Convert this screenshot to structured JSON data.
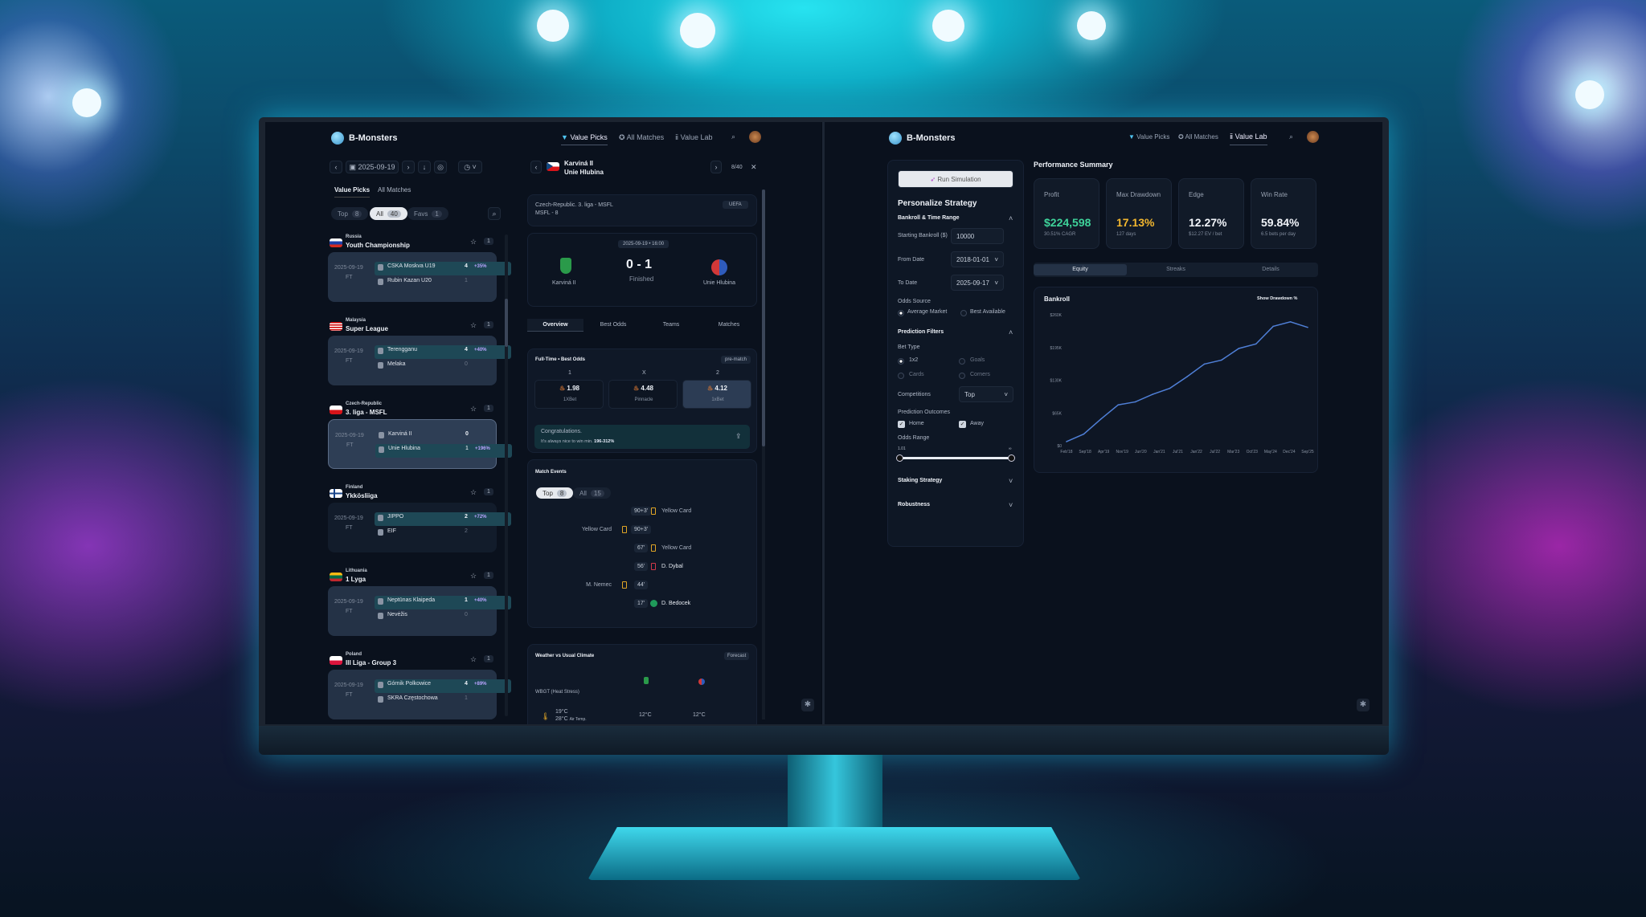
{
  "left_app": {
    "brand": "B-Monsters",
    "nav": [
      {
        "label": "Value Picks",
        "icon": "diamond-icon",
        "active": true
      },
      {
        "label": "All Matches",
        "icon": "soccer-ball-icon"
      },
      {
        "label": "Value Lab",
        "icon": "chart-icon"
      }
    ],
    "date": "2025-09-19",
    "tabs": [
      "Value Picks",
      "All Matches"
    ],
    "filters": [
      {
        "label": "Top",
        "count": "8"
      },
      {
        "label": "All",
        "count": "40",
        "active": true
      },
      {
        "label": "Favs",
        "count": "1"
      }
    ],
    "leagues": [
      {
        "country": "Russia",
        "name": "Youth Championship",
        "count": "1",
        "flag": "russia",
        "date": "2025-09-19",
        "status": "FT",
        "home": "CSKA Moskva U19",
        "home_score": "4",
        "edge": "+35%",
        "away": "Rubin Kazan U20",
        "away_score": "1"
      },
      {
        "country": "Malaysia",
        "name": "Super League",
        "count": "1",
        "flag": "malaysia",
        "date": "2025-09-19",
        "status": "FT",
        "home": "Terengganu",
        "home_score": "4",
        "edge": "+40%",
        "away": "Melaka",
        "away_score": "0"
      },
      {
        "country": "Czech-Republic",
        "name": "3. liga - MSFL",
        "count": "1",
        "flag": "czech",
        "date": "2025-09-19",
        "status": "FT",
        "home": "Karviná II",
        "home_score": "0",
        "away": "Unie Hlubina",
        "away_score": "1",
        "edge": "+196%",
        "selected": true
      },
      {
        "country": "Finland",
        "name": "Ykkösliiga",
        "count": "1",
        "flag": "finland",
        "date": "2025-09-19",
        "status": "FT",
        "home": "JIPPO",
        "home_score": "2",
        "edge": "+72%",
        "away": "EIF",
        "away_score": "2"
      },
      {
        "country": "Lithuania",
        "name": "1 Lyga",
        "count": "1",
        "flag": "lithuania",
        "date": "2025-09-19",
        "status": "FT",
        "home": "Neptūnas Klaipeda",
        "home_score": "1",
        "edge": "+40%",
        "away": "Nevėžis",
        "away_score": "0"
      },
      {
        "country": "Poland",
        "name": "III Liga - Group 3",
        "count": "1",
        "flag": "poland",
        "date": "2025-09-19",
        "status": "FT",
        "home": "Górnik Polkowice",
        "home_score": "4",
        "edge": "+89%",
        "away": "SKRA Częstochowa",
        "away_score": "1"
      }
    ],
    "detail": {
      "home": "Karviná II",
      "away": "Unie Hlubina",
      "pager": "8/40",
      "competition": "Czech-Republic. 3. liga - MSFL",
      "round": "MSFL - 8",
      "badge": "UEFA",
      "kickoff": "2025-09-19 • 16:00",
      "score_home": "0",
      "score_sep": "-",
      "score_away": "1",
      "status": "Finished",
      "tabs": [
        "Overview",
        "Best Odds",
        "Teams",
        "Matches"
      ],
      "odds": {
        "title": "Full-Time • Best Odds",
        "tag": "pre-match",
        "cols": [
          {
            "label": "1",
            "odd": "1.98",
            "book": "1XBet"
          },
          {
            "label": "X",
            "odd": "4.48",
            "book": "Pinnacle"
          },
          {
            "label": "2",
            "odd": "4.12",
            "book": "1xBet",
            "best": true
          }
        ]
      },
      "congrats_title": "Congratulations.",
      "congrats_text": "It's always nice to win min.",
      "congrats_range": "196-312%",
      "events": {
        "title": "Match Events",
        "filters": [
          {
            "label": "Top",
            "count": "8"
          },
          {
            "label": "All",
            "count": "15"
          }
        ],
        "list": [
          {
            "min": "90+3'",
            "side": "away",
            "type": "yellow",
            "text": "Yellow Card"
          },
          {
            "min": "90+3'",
            "side": "home",
            "type": "yellow",
            "text": "Yellow Card"
          },
          {
            "min": "67'",
            "side": "away",
            "type": "yellow",
            "text": "Yellow Card"
          },
          {
            "min": "56'",
            "side": "away",
            "type": "red",
            "text": "D. Dybal"
          },
          {
            "min": "44'",
            "side": "home",
            "type": "yellow",
            "text": "M. Nemec"
          },
          {
            "min": "17'",
            "side": "away",
            "type": "goal",
            "text": "D. Bedocek"
          }
        ]
      },
      "weather": {
        "title": "Weather vs Usual Climate",
        "tag": "Forecast",
        "metric": "WBGT (Heat Stress)",
        "temp1": "19°C",
        "temp2": "28°C",
        "temp2_label": "Air Temp.",
        "home_val": "12°C",
        "away_val": "12°C"
      }
    }
  },
  "right_app": {
    "brand": "B-Monsters",
    "nav": [
      {
        "label": "Value Picks"
      },
      {
        "label": "All Matches"
      },
      {
        "label": "Value Lab",
        "active": true
      }
    ],
    "run_button": "Run Simulation",
    "strategy_title": "Personalize Strategy",
    "bankroll_section": "Bankroll & Time Range",
    "starting_bankroll_label": "Starting Bankroll ($)",
    "starting_bankroll": "10000",
    "from_label": "From Date",
    "from": "2018-01-01",
    "to_label": "To Date",
    "to": "2025-09-17",
    "odds_source_label": "Odds Source",
    "odds_sources": [
      "Average Market",
      "Best Available"
    ],
    "prediction_filters": "Prediction Filters",
    "bet_type_label": "Bet Type",
    "bet_types": [
      "1x2",
      "Goals",
      "Cards",
      "Corners"
    ],
    "competitions_label": "Competitions",
    "competitions": "Top",
    "outcomes_label": "Prediction Outcomes",
    "outcomes": [
      "Home",
      "Away"
    ],
    "odds_range_label": "Odds Range",
    "odds_min": "1.01",
    "odds_max": "∞",
    "staking": "Staking Strategy",
    "robustness": "Robustness",
    "summary_title": "Performance Summary",
    "stats": [
      {
        "label": "Profit",
        "value": "$224,598",
        "sub": "30.51% CAGR",
        "color": "#3ed39a"
      },
      {
        "label": "Max Drawdown",
        "value": "17.13%",
        "sub": "127 days",
        "color": "#f3b72f"
      },
      {
        "label": "Edge",
        "value": "12.27%",
        "sub": "$12.27 EV / bet",
        "color": "#f2f5fa"
      },
      {
        "label": "Win Rate",
        "value": "59.84%",
        "sub": "6.5 bets per day",
        "color": "#f2f5fa"
      }
    ],
    "tabs": [
      "Equity",
      "Streaks",
      "Details"
    ],
    "show_drawdown": "Show Drawdown %"
  },
  "chart_data": {
    "type": "line",
    "title": "Bankroll",
    "line_color": "#4f7fd6",
    "x": [
      "Feb'18",
      "Sep'18",
      "Apr'19",
      "Nov'19",
      "Jun'20",
      "Jan'21",
      "Jul'21",
      "Jan'22",
      "Jul'22",
      "Mar'23",
      "Oct'23",
      "May'24",
      "Dec'24",
      "Mar'25",
      "Sep'25"
    ],
    "y": [
      8000,
      23000,
      53000,
      81000,
      87000,
      102000,
      114000,
      137000,
      162000,
      170000,
      193000,
      202000,
      237000,
      246000,
      235000
    ],
    "xticks": [
      "Feb'18",
      "Sep'18",
      "Apr'19",
      "Nov'19",
      "Jun'20",
      "Jan'21",
      "Jul'21",
      "Jan'22",
      "Jul'22",
      "Mar'23",
      "Oct'23",
      "May'24",
      "Dec'24",
      "Sep'25"
    ],
    "yticks": [
      "$0",
      "$65K",
      "$130K",
      "$195K",
      "$260K"
    ],
    "ylim": [
      0,
      260000
    ],
    "grid": false
  }
}
